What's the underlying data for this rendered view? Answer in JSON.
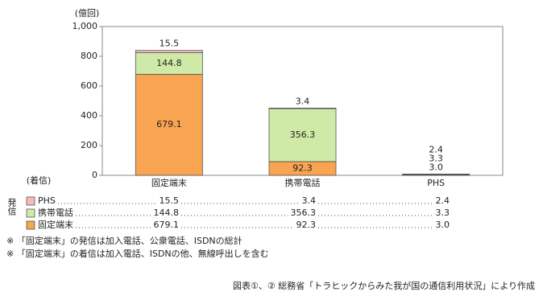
{
  "chart_data": {
    "type": "bar",
    "stacked": true,
    "y_unit": "(億回)",
    "x_label": "(着信)",
    "legend_title": "発信",
    "categories": [
      "固定端末",
      "携帯電話",
      "PHS"
    ],
    "series": [
      {
        "name": "固定端末",
        "color": "#f9a450",
        "values": [
          679.1,
          92.3,
          3.0
        ],
        "value_labels": [
          "679.1",
          "92.3",
          "3.0"
        ]
      },
      {
        "name": "携帯電話",
        "color": "#cfe9a6",
        "values": [
          144.8,
          356.3,
          3.3
        ],
        "value_labels": [
          "144.8",
          "356.3",
          "3.3"
        ]
      },
      {
        "name": "PHS",
        "color": "#f7b9b9",
        "values": [
          15.5,
          3.4,
          2.4
        ],
        "value_labels": [
          "15.5",
          "3.4",
          "2.4"
        ]
      }
    ],
    "ylim": [
      0,
      1000
    ],
    "yticks": [
      0,
      200,
      400,
      600,
      800,
      {
        "value": 1000,
        "label": "1,000"
      }
    ],
    "grid": false,
    "notes": [
      "※ 「固定端末」の発信は加入電話、公衆電話、ISDNの総計",
      "※ 「固定端末」の着信は加入電話、ISDNの他、無線呼出しを含む"
    ],
    "source": "図表①、② 総務省「トラヒックからみた我が国の通信利用状況」により作成"
  }
}
